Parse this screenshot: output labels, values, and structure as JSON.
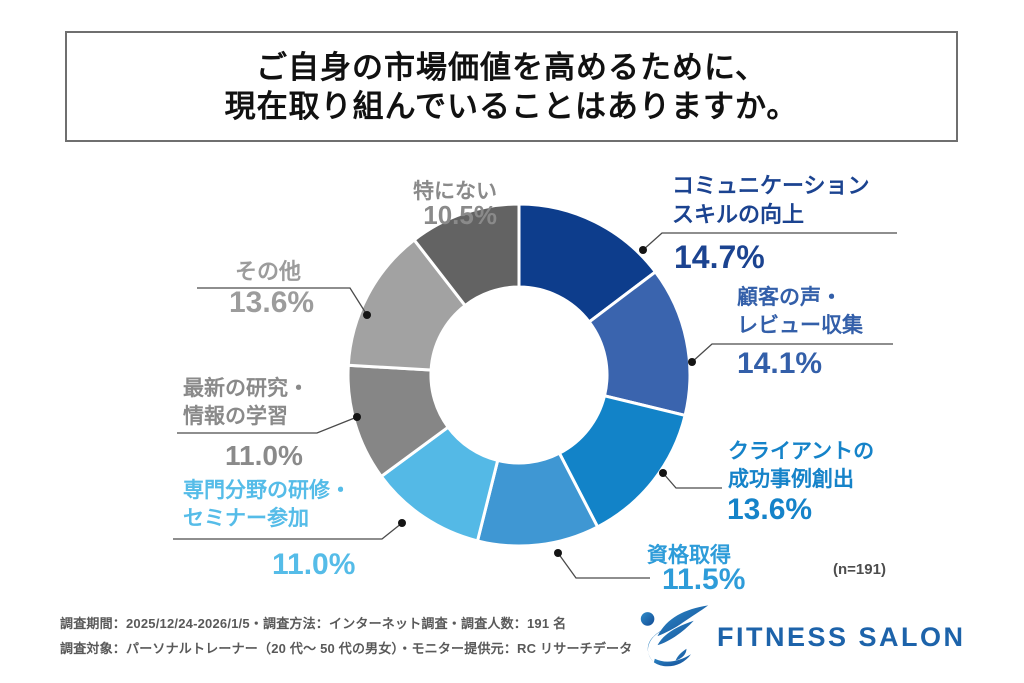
{
  "title": {
    "line1": "ご自身の市場価値を高めるために、",
    "line2": "現在取り組んでいることはありますか。"
  },
  "chart_data": {
    "type": "pie",
    "subtype": "donut",
    "title": "ご自身の市場価値を高めるために、現在取り組んでいることはありますか。",
    "sample_note": "(n=191)",
    "start": "12 o'clock, clockwise",
    "segments": [
      {
        "label": "コミュニケーションスキルの向上",
        "value": 14.7,
        "color": "#0d3d8c"
      },
      {
        "label": "顧客の声・レビュー収集",
        "value": 14.1,
        "color": "#3a64ae"
      },
      {
        "label": "クライアントの成功事例創出",
        "value": 13.6,
        "color": "#1283c8"
      },
      {
        "label": "資格取得",
        "value": 11.5,
        "color": "#3f97d3"
      },
      {
        "label": "専門分野の研修・セミナー参加",
        "value": 11.0,
        "color": "#54b9e6"
      },
      {
        "label": "最新の研究・情報の学習",
        "value": 11.0,
        "color": "#868686"
      },
      {
        "label": "その他",
        "value": 13.6,
        "color": "#a2a2a2"
      },
      {
        "label": "特にない",
        "value": 10.5,
        "color": "#636363"
      }
    ]
  },
  "callouts": [
    {
      "line1": "コミュニケーション",
      "line2": "スキルの向上",
      "pct": "14.7%",
      "color": "#1b4390"
    },
    {
      "line1": "顧客の声・",
      "line2": "レビュー収集",
      "pct": "14.1%",
      "color": "#335fa9"
    },
    {
      "line1": "クライアントの",
      "line2": "成功事例創出",
      "pct": "13.6%",
      "color": "#1583c9"
    },
    {
      "line1": "資格取得",
      "pct": "11.5%",
      "color": "#2e9cd9"
    },
    {
      "line1": "専門分野の研修・",
      "line2": "セミナー参加",
      "pct": "11.0%",
      "color": "#55bce8"
    },
    {
      "line1": "最新の研究・",
      "line2": "情報の学習",
      "pct": "11.0%",
      "color": "#8a8a8a"
    },
    {
      "line1": "その他",
      "pct": "13.6%",
      "color": "#9c9c9c"
    },
    {
      "line1": "特にない",
      "pct": "10.5%",
      "color": "#8a8a8a"
    }
  ],
  "note": "(n=191)",
  "footer": {
    "line1": "調査期間：2025/12/24-2026/1/5・調査方法：インターネット調査・調査人数：191 名",
    "line2": "調査対象：パーソナルトレーナー（20 代～ 50 代の男女）・モニター提供元：RC リサーチデータ"
  },
  "logo": {
    "text": "FITNESS SALON",
    "color": "#1d63aa"
  }
}
